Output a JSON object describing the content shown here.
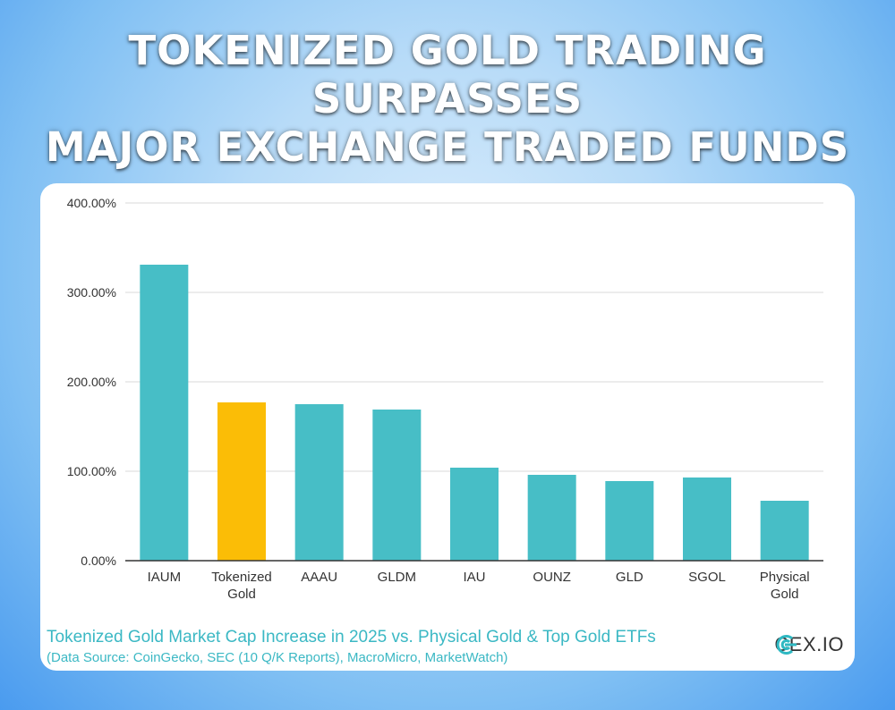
{
  "header": {
    "line1": "TOKENIZED GOLD TRADING SURPASSES",
    "line2": "MAJOR EXCHANGE TRADED FUNDS"
  },
  "chart_data": {
    "type": "bar",
    "categories": [
      "IAUM",
      "Tokenized Gold",
      "AAAU",
      "GLDM",
      "IAU",
      "OUNZ",
      "GLD",
      "SGOL",
      "Physical Gold"
    ],
    "category_lines": [
      [
        "IAUM"
      ],
      [
        "Tokenized",
        "Gold"
      ],
      [
        "AAAU"
      ],
      [
        "GLDM"
      ],
      [
        "IAU"
      ],
      [
        "OUNZ"
      ],
      [
        "GLD"
      ],
      [
        "SGOL"
      ],
      [
        "Physical",
        "Gold"
      ]
    ],
    "values": [
      331,
      177,
      175,
      169,
      104,
      96,
      89,
      93,
      67
    ],
    "y_ticks": [
      "0.00%",
      "100.00%",
      "200.00%",
      "300.00%",
      "400.00%"
    ],
    "ylim": [
      0,
      400
    ],
    "grid": true,
    "highlight_index": 1,
    "colors": {
      "bar": "#47bec6",
      "highlight": "#fbbd06",
      "grid": "#d9d9d9",
      "axis": "#333333",
      "text": "#333333"
    }
  },
  "caption": {
    "title": "Tokenized Gold Market Cap Increase in 2025 vs. Physical Gold & Top Gold ETFs",
    "source": "(Data Source: CoinGecko, SEC (10 Q/K Reports), MacroMicro, MarketWatch)"
  },
  "brand": {
    "name": "CEX.IO",
    "icon": "cex-logo-icon",
    "color": "#2fb9c3"
  }
}
